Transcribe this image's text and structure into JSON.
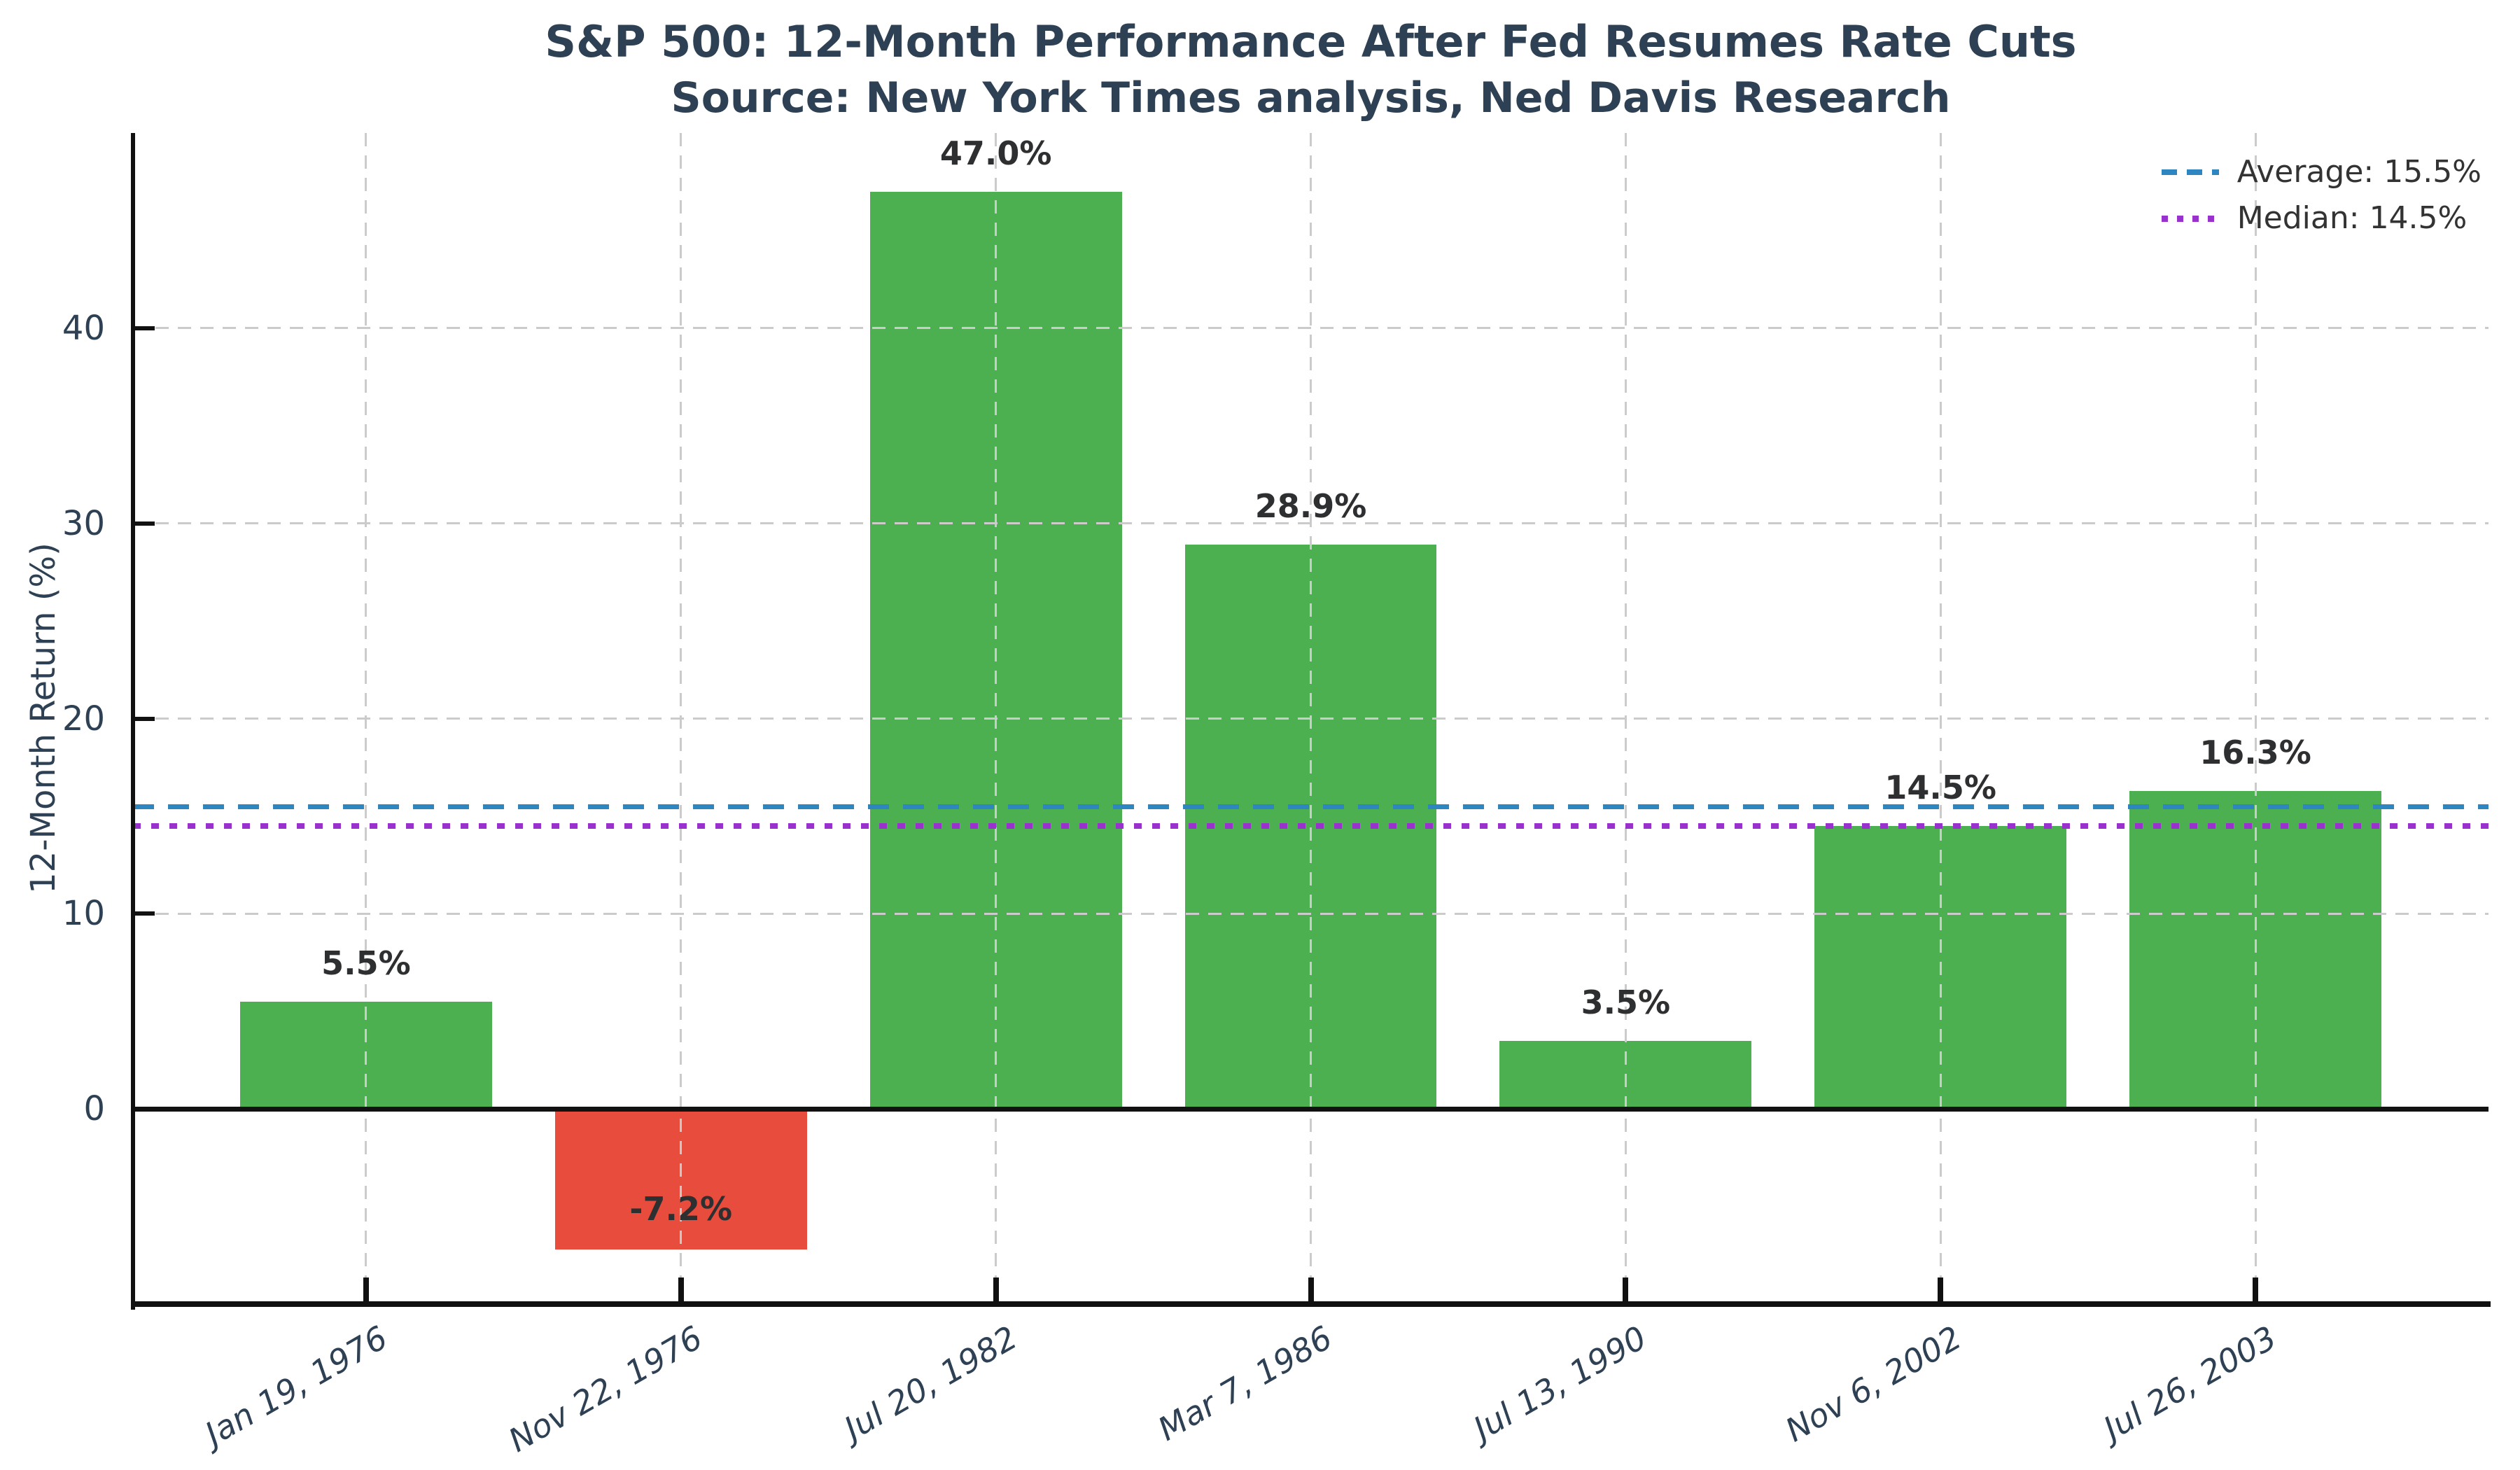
{
  "chart_data": {
    "type": "bar",
    "title": "S&P 500: 12-Month Performance After Fed Resumes Rate Cuts",
    "subtitle": "Source: New York Times analysis, Ned Davis Research",
    "ylabel": "12-Month Return (%)",
    "categories": [
      "Jan 19, 1976",
      "Nov 22, 1976",
      "Jul 20, 1982",
      "Mar 7, 1986",
      "Jul 13, 1990",
      "Nov 6, 2002",
      "Jul 26, 2003"
    ],
    "values": [
      5.5,
      -7.2,
      47.0,
      28.9,
      3.5,
      14.5,
      16.3
    ],
    "bar_labels": [
      "5.5%",
      "-7.2%",
      "47.0%",
      "28.9%",
      "3.5%",
      "14.5%",
      "16.3%"
    ],
    "average": 15.5,
    "median": 14.5,
    "legend": [
      {
        "label": "Average: 15.5%",
        "style": "dashed",
        "color": "#2e86c1"
      },
      {
        "label": "Median: 14.5%",
        "style": "dotted",
        "color": "#9932cc"
      }
    ],
    "ylim": [
      -10,
      50
    ],
    "yticks": [
      0,
      10,
      20,
      30,
      40
    ],
    "grid": true,
    "legend_position": "upper right",
    "colors": {
      "positive_bar": "#4caf50",
      "negative_bar": "#e74c3c",
      "grid": "#cbcbcb",
      "axis": "#111111",
      "title": "#2e4053",
      "tick_label": "#2e4053",
      "value_label": "#2d2f31",
      "legend_text": "#333333",
      "average_line": "#2e86c1",
      "median_line": "#9932cc",
      "background": "#ffffff"
    }
  }
}
